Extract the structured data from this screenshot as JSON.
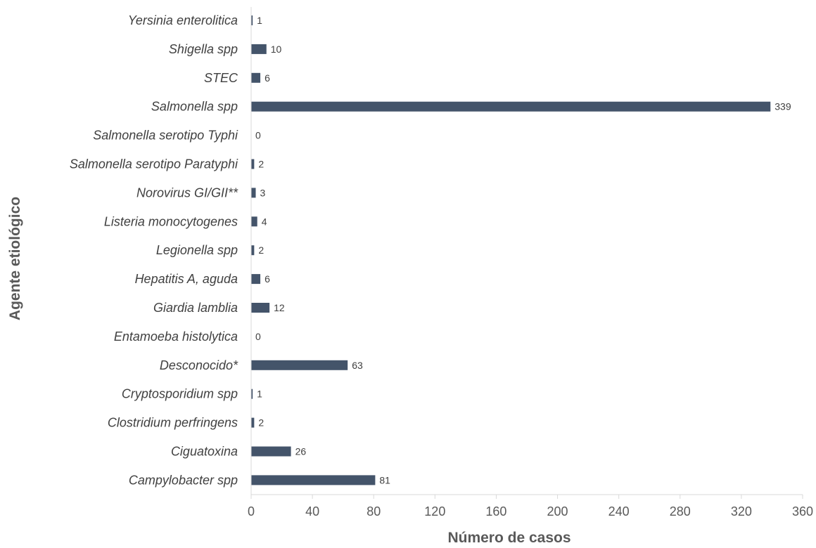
{
  "chart_data": {
    "type": "bar",
    "orientation": "horizontal",
    "categories": [
      "Yersinia enterolitica",
      "Shigella spp",
      "STEC",
      "Salmonella spp",
      "Salmonella serotipo Typhi",
      "Salmonella serotipo Paratyphi",
      "Norovirus GI/GII**",
      "Listeria monocytogenes",
      "Legionella spp",
      "Hepatitis A, aguda",
      "Giardia lamblia",
      "Entamoeba histolytica",
      "Desconocido*",
      "Cryptosporidium spp",
      "Clostridium perfringens",
      "Ciguatoxina",
      "Campylobacter spp"
    ],
    "values": [
      1,
      10,
      6,
      339,
      0,
      2,
      3,
      4,
      2,
      6,
      12,
      0,
      63,
      1,
      2,
      26,
      81
    ],
    "xlabel": "Número de casos",
    "ylabel": "Agente etiológico",
    "xlim": [
      0,
      360
    ],
    "xticks": [
      0,
      40,
      80,
      120,
      160,
      200,
      240,
      280,
      320,
      360
    ],
    "bar_color": "#44546a",
    "grid": false,
    "data_labels": true
  }
}
